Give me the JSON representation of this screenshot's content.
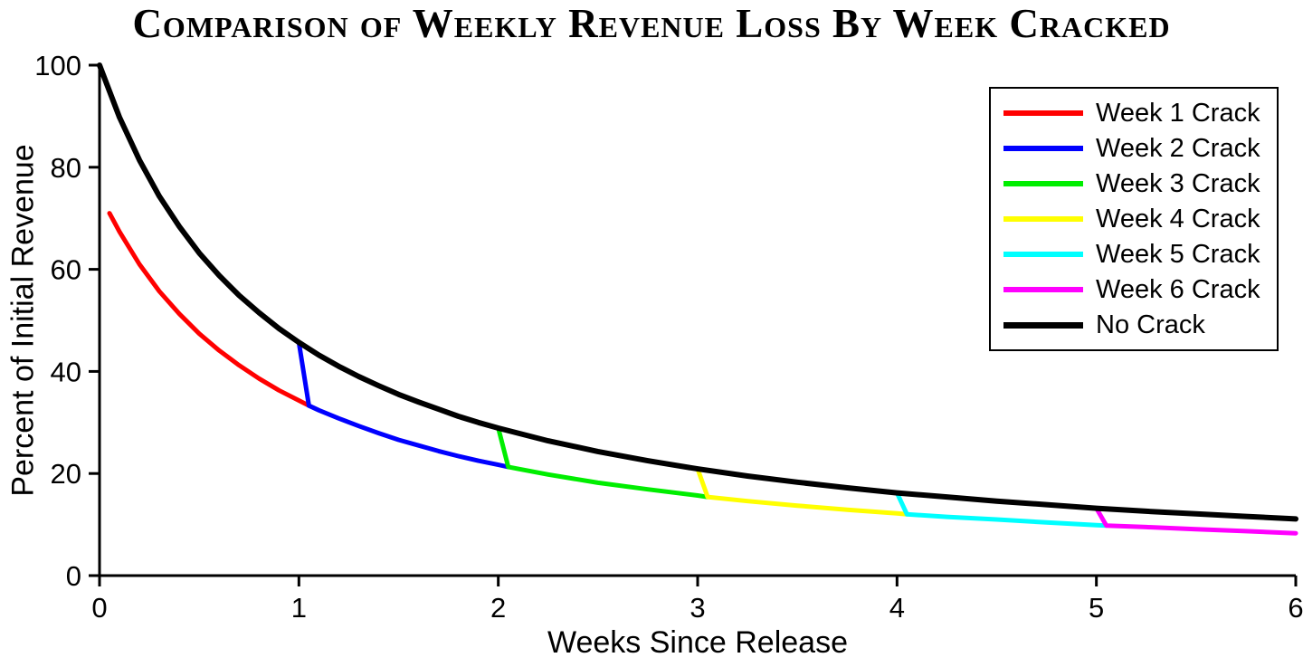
{
  "chart_data": {
    "type": "line",
    "title": "Comparison of Weekly Revenue Loss By Week Cracked",
    "xlabel": "Weeks Since Release",
    "ylabel": "Percent of Initial Revenue",
    "xlim": [
      0,
      6
    ],
    "ylim": [
      0,
      100
    ],
    "xticks": [
      0,
      1,
      2,
      3,
      4,
      5,
      6
    ],
    "yticks": [
      0,
      20,
      40,
      60,
      80,
      100
    ],
    "grid": false,
    "legend_position": "top-right",
    "series": [
      {
        "name": "Week 1 Crack",
        "color": "#ff0000",
        "linewidth": 5,
        "points": [
          [
            0.05,
            71
          ],
          [
            0.1,
            67.4
          ],
          [
            0.2,
            61
          ],
          [
            0.3,
            55.7
          ],
          [
            0.4,
            51.3
          ],
          [
            0.5,
            47.4
          ],
          [
            0.6,
            44.1
          ],
          [
            0.7,
            41.2
          ],
          [
            0.8,
            38.6
          ],
          [
            0.9,
            36.3
          ],
          [
            1,
            34.3
          ],
          [
            1.05,
            33.3
          ]
        ]
      },
      {
        "name": "Week 2 Crack",
        "color": "#0000ff",
        "linewidth": 5,
        "points": [
          [
            1,
            45.7
          ],
          [
            1.05,
            33.3
          ],
          [
            1.1,
            32.4
          ],
          [
            1.2,
            30.8
          ],
          [
            1.3,
            29.3
          ],
          [
            1.4,
            27.9
          ],
          [
            1.5,
            26.6
          ],
          [
            1.6,
            25.5
          ],
          [
            1.7,
            24.4
          ],
          [
            1.8,
            23.4
          ],
          [
            1.9,
            22.5
          ],
          [
            2,
            21.7
          ],
          [
            2.05,
            21.3
          ]
        ]
      },
      {
        "name": "Week 3 Crack",
        "color": "#00ee00",
        "linewidth": 5,
        "points": [
          [
            2,
            28.9
          ],
          [
            2.05,
            21.3
          ],
          [
            2.1,
            20.9
          ],
          [
            2.25,
            19.8
          ],
          [
            2.5,
            18.2
          ],
          [
            2.75,
            16.9
          ],
          [
            3,
            15.7
          ],
          [
            3.05,
            15.4
          ]
        ]
      },
      {
        "name": "Week 4 Crack",
        "color": "#ffff00",
        "linewidth": 5,
        "points": [
          [
            3,
            20.9
          ],
          [
            3.05,
            15.4
          ],
          [
            3.25,
            14.6
          ],
          [
            3.5,
            13.7
          ],
          [
            3.75,
            12.9
          ],
          [
            4,
            12.2
          ],
          [
            4.05,
            12
          ]
        ]
      },
      {
        "name": "Week 5 Crack",
        "color": "#00ffff",
        "linewidth": 5,
        "points": [
          [
            4,
            16.2
          ],
          [
            4.05,
            12
          ],
          [
            4.25,
            11.5
          ],
          [
            4.5,
            11
          ],
          [
            4.75,
            10.4
          ],
          [
            5,
            9.9
          ],
          [
            5.05,
            9.8
          ]
        ]
      },
      {
        "name": "Week 6 Crack",
        "color": "#ff00ff",
        "linewidth": 5,
        "points": [
          [
            5,
            13.2
          ],
          [
            5.05,
            9.8
          ],
          [
            5.25,
            9.5
          ],
          [
            5.5,
            9.1
          ],
          [
            5.75,
            8.7
          ],
          [
            6,
            8.3
          ]
        ]
      },
      {
        "name": "No Crack",
        "color": "#000000",
        "linewidth": 6,
        "points": [
          [
            0,
            100
          ],
          [
            0.1,
            89.8
          ],
          [
            0.2,
            81.4
          ],
          [
            0.3,
            74.3
          ],
          [
            0.4,
            68.4
          ],
          [
            0.5,
            63.2
          ],
          [
            0.6,
            58.8
          ],
          [
            0.7,
            54.9
          ],
          [
            0.8,
            51.5
          ],
          [
            0.9,
            48.4
          ],
          [
            1,
            45.7
          ],
          [
            1.1,
            43.2
          ],
          [
            1.2,
            41
          ],
          [
            1.3,
            39
          ],
          [
            1.4,
            37.2
          ],
          [
            1.5,
            35.5
          ],
          [
            1.6,
            34
          ],
          [
            1.7,
            32.6
          ],
          [
            1.8,
            31.2
          ],
          [
            1.9,
            30
          ],
          [
            2,
            28.9
          ],
          [
            2.25,
            26.4
          ],
          [
            2.5,
            24.3
          ],
          [
            2.75,
            22.5
          ],
          [
            3,
            20.9
          ],
          [
            3.25,
            19.5
          ],
          [
            3.5,
            18.3
          ],
          [
            3.75,
            17.2
          ],
          [
            4,
            16.2
          ],
          [
            4.25,
            15.4
          ],
          [
            4.5,
            14.6
          ],
          [
            4.75,
            13.9
          ],
          [
            5,
            13.2
          ],
          [
            5.25,
            12.6
          ],
          [
            5.5,
            12.1
          ],
          [
            5.75,
            11.6
          ],
          [
            6,
            11.1
          ]
        ]
      }
    ]
  }
}
